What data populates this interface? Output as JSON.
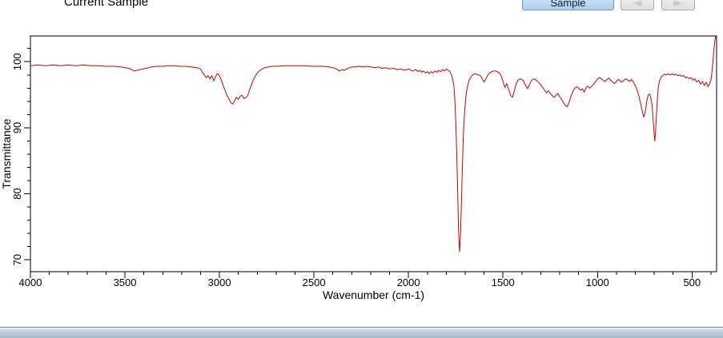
{
  "header": {
    "current_sample_label": "Current Sample",
    "sample_button_label": "Sample",
    "prev_icon_glyph": "◄",
    "next_icon_glyph": "►"
  },
  "colors": {
    "spectrum_line": "#cc0000",
    "axis": "#000000",
    "sample_button_border": "#6d98c2",
    "bottom_bar_border": "#6e8396"
  },
  "chart_data": {
    "type": "line",
    "title": "Current Sample",
    "xlabel": "Wavenumber (cm-1)",
    "ylabel": "Transmittance",
    "x_range": [
      4000,
      370
    ],
    "y_range": [
      68.2,
      103.9
    ],
    "x_ticks": [
      4000,
      3500,
      3000,
      2500,
      2000,
      1500,
      1000,
      500
    ],
    "y_ticks": [
      70,
      80,
      90,
      100
    ],
    "x_minor_step": 100,
    "y_minor_step": 2,
    "x_axis_reversed": true,
    "grid": false,
    "legend": false,
    "series": [
      {
        "name": "Current Sample",
        "color": "#cc0000",
        "points": [
          [
            4000,
            99.4
          ],
          [
            3960,
            99.5
          ],
          [
            3920,
            99.4
          ],
          [
            3880,
            99.5
          ],
          [
            3840,
            99.4
          ],
          [
            3800,
            99.5
          ],
          [
            3760,
            99.4
          ],
          [
            3720,
            99.5
          ],
          [
            3680,
            99.4
          ],
          [
            3640,
            99.4
          ],
          [
            3600,
            99.3
          ],
          [
            3560,
            99.3
          ],
          [
            3520,
            99.2
          ],
          [
            3480,
            99.0
          ],
          [
            3450,
            98.6
          ],
          [
            3420,
            98.8
          ],
          [
            3390,
            99.0
          ],
          [
            3360,
            99.2
          ],
          [
            3330,
            99.3
          ],
          [
            3300,
            99.3
          ],
          [
            3270,
            99.4
          ],
          [
            3240,
            99.4
          ],
          [
            3210,
            99.3
          ],
          [
            3180,
            99.3
          ],
          [
            3150,
            99.2
          ],
          [
            3120,
            99.1
          ],
          [
            3100,
            98.9
          ],
          [
            3085,
            98.2
          ],
          [
            3070,
            97.6
          ],
          [
            3060,
            97.9
          ],
          [
            3050,
            97.4
          ],
          [
            3040,
            97.9
          ],
          [
            3030,
            97.1
          ],
          [
            3020,
            97.8
          ],
          [
            3010,
            98.2
          ],
          [
            3000,
            97.9
          ],
          [
            2990,
            97.2
          ],
          [
            2975,
            96.0
          ],
          [
            2960,
            94.9
          ],
          [
            2950,
            94.4
          ],
          [
            2940,
            93.8
          ],
          [
            2930,
            93.6
          ],
          [
            2920,
            94.1
          ],
          [
            2910,
            94.6
          ],
          [
            2900,
            94.3
          ],
          [
            2890,
            94.8
          ],
          [
            2880,
            94.9
          ],
          [
            2870,
            94.4
          ],
          [
            2860,
            94.6
          ],
          [
            2850,
            94.9
          ],
          [
            2840,
            95.8
          ],
          [
            2820,
            97.3
          ],
          [
            2800,
            98.3
          ],
          [
            2780,
            98.8
          ],
          [
            2760,
            99.1
          ],
          [
            2740,
            99.2
          ],
          [
            2720,
            99.3
          ],
          [
            2700,
            99.3
          ],
          [
            2650,
            99.4
          ],
          [
            2600,
            99.4
          ],
          [
            2550,
            99.4
          ],
          [
            2500,
            99.3
          ],
          [
            2450,
            99.3
          ],
          [
            2420,
            99.2
          ],
          [
            2400,
            99.1
          ],
          [
            2380,
            98.9
          ],
          [
            2365,
            98.6
          ],
          [
            2350,
            98.8
          ],
          [
            2340,
            98.7
          ],
          [
            2320,
            99.0
          ],
          [
            2300,
            99.2
          ],
          [
            2280,
            99.2
          ],
          [
            2260,
            99.3
          ],
          [
            2240,
            99.2
          ],
          [
            2220,
            99.3
          ],
          [
            2200,
            99.2
          ],
          [
            2180,
            99.1
          ],
          [
            2160,
            99.2
          ],
          [
            2140,
            99.0
          ],
          [
            2120,
            99.1
          ],
          [
            2100,
            98.9
          ],
          [
            2080,
            99.0
          ],
          [
            2060,
            98.8
          ],
          [
            2040,
            98.9
          ],
          [
            2020,
            98.7
          ],
          [
            2000,
            98.9
          ],
          [
            1980,
            98.6
          ],
          [
            1960,
            98.8
          ],
          [
            1950,
            98.5
          ],
          [
            1940,
            98.7
          ],
          [
            1930,
            98.4
          ],
          [
            1920,
            98.6
          ],
          [
            1910,
            98.3
          ],
          [
            1900,
            98.5
          ],
          [
            1890,
            98.2
          ],
          [
            1880,
            98.5
          ],
          [
            1870,
            98.3
          ],
          [
            1860,
            98.6
          ],
          [
            1850,
            98.4
          ],
          [
            1840,
            98.7
          ],
          [
            1830,
            98.5
          ],
          [
            1820,
            98.8
          ],
          [
            1810,
            98.6
          ],
          [
            1800,
            98.9
          ],
          [
            1790,
            98.7
          ],
          [
            1780,
            98.5
          ],
          [
            1770,
            97.8
          ],
          [
            1760,
            96.5
          ],
          [
            1755,
            94.5
          ],
          [
            1750,
            91.0
          ],
          [
            1745,
            86.5
          ],
          [
            1740,
            80.5
          ],
          [
            1735,
            74.5
          ],
          [
            1730,
            71.2
          ],
          [
            1725,
            73.5
          ],
          [
            1720,
            78.5
          ],
          [
            1715,
            84.0
          ],
          [
            1710,
            88.5
          ],
          [
            1705,
            91.5
          ],
          [
            1700,
            93.5
          ],
          [
            1695,
            95.0
          ],
          [
            1690,
            96.0
          ],
          [
            1680,
            97.1
          ],
          [
            1670,
            97.7
          ],
          [
            1660,
            98.0
          ],
          [
            1650,
            98.2
          ],
          [
            1640,
            98.1
          ],
          [
            1630,
            98.0
          ],
          [
            1620,
            97.9
          ],
          [
            1610,
            97.4
          ],
          [
            1600,
            96.9
          ],
          [
            1590,
            97.4
          ],
          [
            1580,
            98.0
          ],
          [
            1570,
            98.3
          ],
          [
            1560,
            98.5
          ],
          [
            1550,
            98.6
          ],
          [
            1540,
            98.6
          ],
          [
            1530,
            98.5
          ],
          [
            1520,
            98.3
          ],
          [
            1510,
            97.9
          ],
          [
            1500,
            97.0
          ],
          [
            1490,
            96.1
          ],
          [
            1480,
            96.7
          ],
          [
            1470,
            95.8
          ],
          [
            1460,
            94.9
          ],
          [
            1450,
            94.6
          ],
          [
            1440,
            95.6
          ],
          [
            1430,
            96.7
          ],
          [
            1420,
            97.2
          ],
          [
            1410,
            97.4
          ],
          [
            1400,
            97.3
          ],
          [
            1390,
            97.0
          ],
          [
            1380,
            96.4
          ],
          [
            1370,
            95.9
          ],
          [
            1360,
            96.5
          ],
          [
            1350,
            97.1
          ],
          [
            1340,
            97.4
          ],
          [
            1330,
            97.3
          ],
          [
            1320,
            97.1
          ],
          [
            1310,
            96.8
          ],
          [
            1300,
            96.5
          ],
          [
            1290,
            96.1
          ],
          [
            1280,
            95.7
          ],
          [
            1270,
            95.3
          ],
          [
            1260,
            95.6
          ],
          [
            1250,
            95.2
          ],
          [
            1240,
            94.9
          ],
          [
            1230,
            94.6
          ],
          [
            1220,
            94.9
          ],
          [
            1210,
            95.2
          ],
          [
            1200,
            94.7
          ],
          [
            1190,
            94.3
          ],
          [
            1180,
            93.8
          ],
          [
            1170,
            93.4
          ],
          [
            1160,
            93.2
          ],
          [
            1150,
            93.9
          ],
          [
            1140,
            94.8
          ],
          [
            1130,
            95.5
          ],
          [
            1120,
            96.0
          ],
          [
            1110,
            96.2
          ],
          [
            1100,
            96.0
          ],
          [
            1090,
            95.7
          ],
          [
            1080,
            95.9
          ],
          [
            1070,
            95.4
          ],
          [
            1060,
            96.1
          ],
          [
            1050,
            96.3
          ],
          [
            1040,
            96.0
          ],
          [
            1030,
            96.3
          ],
          [
            1020,
            96.6
          ],
          [
            1010,
            97.0
          ],
          [
            1000,
            97.4
          ],
          [
            990,
            97.6
          ],
          [
            980,
            97.4
          ],
          [
            970,
            97.2
          ],
          [
            960,
            97.0
          ],
          [
            950,
            97.3
          ],
          [
            940,
            97.5
          ],
          [
            930,
            97.2
          ],
          [
            920,
            96.9
          ],
          [
            910,
            96.7
          ],
          [
            900,
            97.0
          ],
          [
            890,
            97.3
          ],
          [
            880,
            97.1
          ],
          [
            870,
            96.9
          ],
          [
            860,
            97.2
          ],
          [
            850,
            97.4
          ],
          [
            840,
            97.2
          ],
          [
            830,
            97.0
          ],
          [
            820,
            97.3
          ],
          [
            810,
            96.9
          ],
          [
            800,
            96.4
          ],
          [
            790,
            95.7
          ],
          [
            780,
            94.7
          ],
          [
            770,
            93.4
          ],
          [
            760,
            92.1
          ],
          [
            755,
            91.6
          ],
          [
            750,
            92.2
          ],
          [
            745,
            92.8
          ],
          [
            740,
            93.9
          ],
          [
            735,
            94.6
          ],
          [
            730,
            95.0
          ],
          [
            725,
            95.1
          ],
          [
            720,
            94.8
          ],
          [
            715,
            94.2
          ],
          [
            710,
            93.0
          ],
          [
            705,
            91.0
          ],
          [
            700,
            88.9
          ],
          [
            697,
            88.0
          ],
          [
            693,
            89.3
          ],
          [
            688,
            92.0
          ],
          [
            683,
            94.5
          ],
          [
            678,
            96.2
          ],
          [
            672,
            97.1
          ],
          [
            665,
            97.6
          ],
          [
            655,
            97.9
          ],
          [
            645,
            98.1
          ],
          [
            635,
            98.0
          ],
          [
            625,
            98.2
          ],
          [
            615,
            98.0
          ],
          [
            605,
            98.2
          ],
          [
            595,
            98.0
          ],
          [
            585,
            98.1
          ],
          [
            575,
            97.9
          ],
          [
            565,
            98.0
          ],
          [
            555,
            97.8
          ],
          [
            545,
            97.9
          ],
          [
            535,
            97.6
          ],
          [
            525,
            97.7
          ],
          [
            515,
            97.4
          ],
          [
            505,
            97.6
          ],
          [
            495,
            97.2
          ],
          [
            485,
            97.4
          ],
          [
            475,
            96.9
          ],
          [
            465,
            97.2
          ],
          [
            455,
            96.6
          ],
          [
            445,
            97.0
          ],
          [
            435,
            96.4
          ],
          [
            425,
            96.9
          ],
          [
            415,
            96.2
          ],
          [
            405,
            96.8
          ],
          [
            400,
            97.2
          ],
          [
            395,
            98.3
          ],
          [
            390,
            99.8
          ],
          [
            385,
            101.6
          ],
          [
            380,
            103.0
          ],
          [
            375,
            103.8
          ]
        ]
      }
    ]
  }
}
